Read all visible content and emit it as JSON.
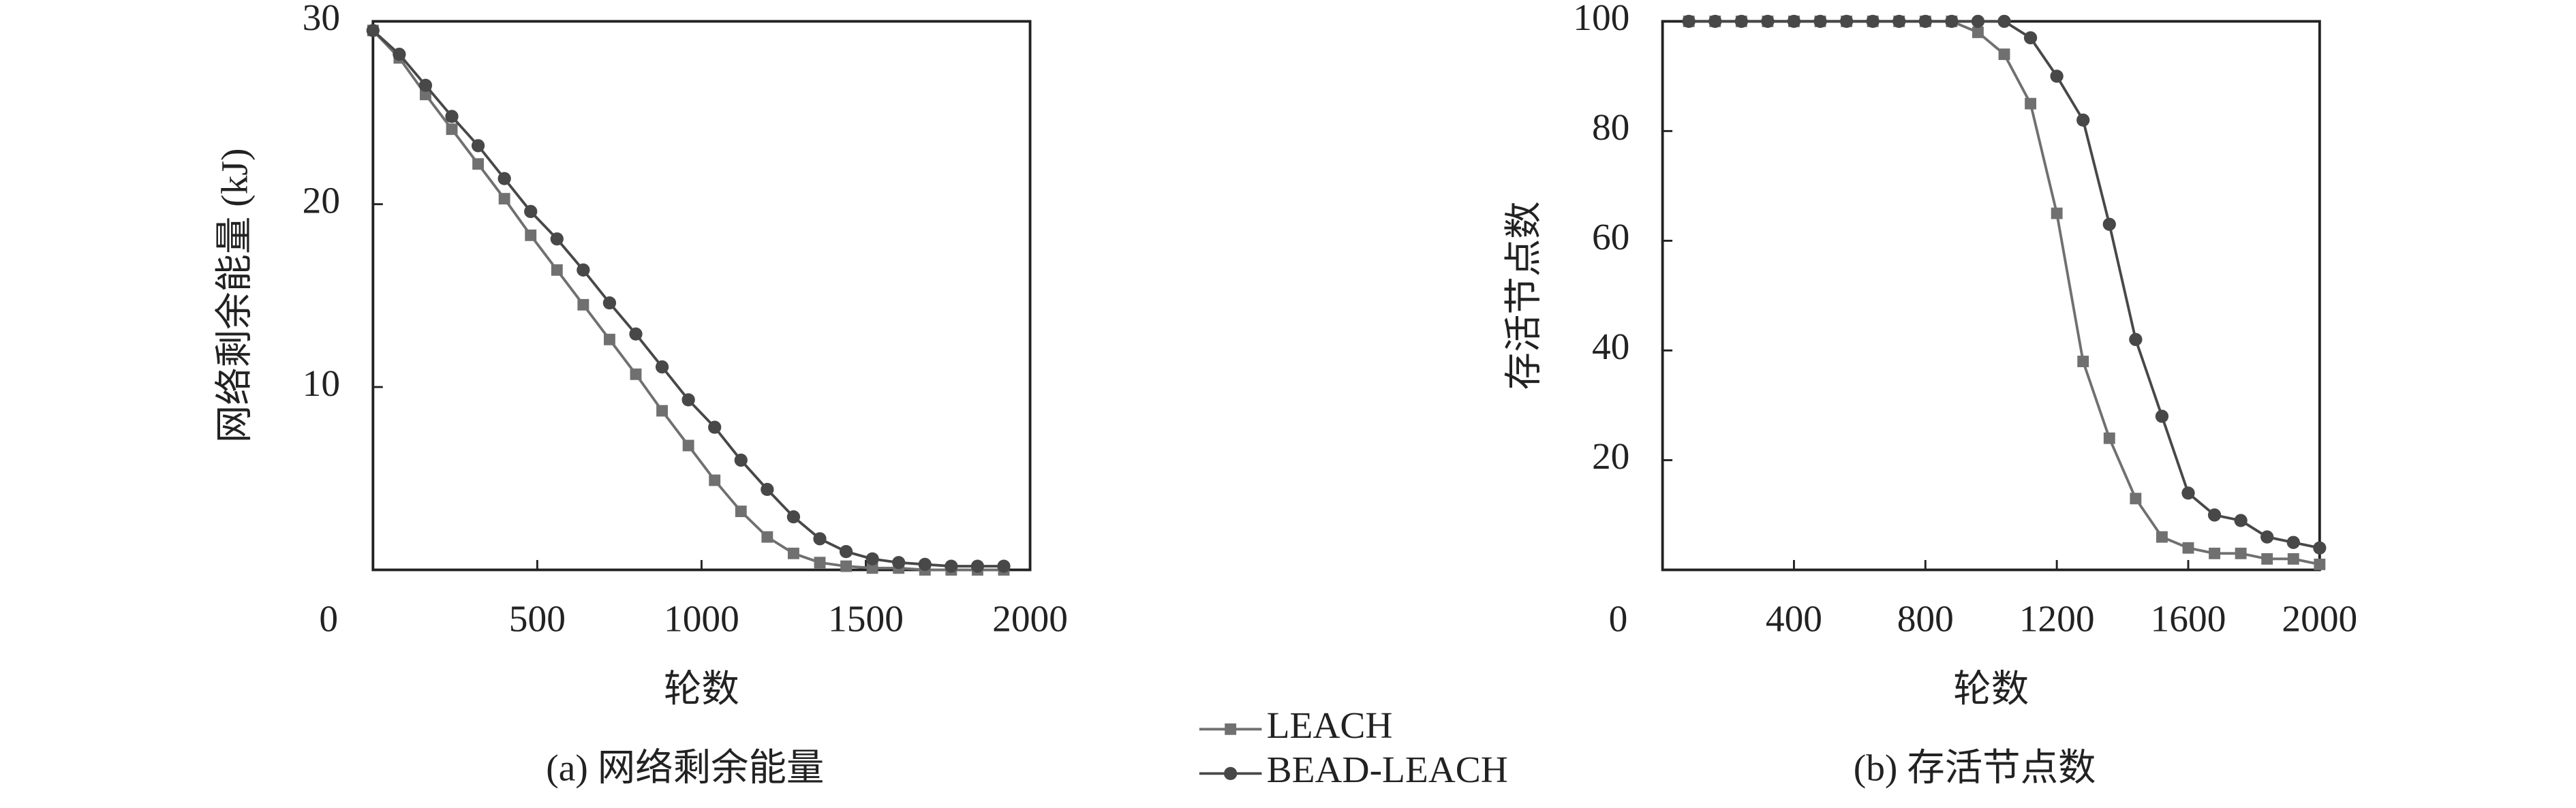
{
  "chart_data": [
    {
      "type": "line",
      "caption": "(a) 网络剩余能量",
      "xlabel": "轮数",
      "ylabel": "网络剩余能量 (kJ)",
      "x": [
        0,
        80,
        160,
        240,
        320,
        400,
        480,
        560,
        640,
        720,
        800,
        880,
        960,
        1040,
        1120,
        1200,
        1280,
        1360,
        1440,
        1520,
        1600,
        1680,
        1760,
        1840,
        1920
      ],
      "xlim": [
        0,
        2000
      ],
      "xticks": [
        0,
        500,
        1000,
        1500,
        2000
      ],
      "ylim": [
        0,
        30
      ],
      "yticks": [
        10,
        20,
        30
      ],
      "series": [
        {
          "name": "LEACH",
          "color": "#707070",
          "marker": "square",
          "values": [
            29.5,
            28,
            26,
            24.1,
            22.2,
            20.3,
            18.3,
            16.4,
            14.5,
            12.6,
            10.7,
            8.7,
            6.8,
            4.9,
            3.2,
            1.8,
            0.9,
            0.4,
            0.2,
            0.1,
            0.1,
            0,
            0,
            0,
            0
          ]
        },
        {
          "name": "BEAD-LEACH",
          "color": "#484848",
          "marker": "circle",
          "values": [
            29.5,
            28.2,
            26.5,
            24.8,
            23.2,
            21.4,
            19.6,
            18.1,
            16.4,
            14.6,
            12.9,
            11.1,
            9.3,
            7.8,
            6,
            4.4,
            2.9,
            1.7,
            1,
            0.6,
            0.4,
            0.3,
            0.2,
            0.2,
            0.2
          ]
        }
      ]
    },
    {
      "type": "line",
      "caption": "(b) 存活节点数",
      "xlabel": "轮数",
      "ylabel": "存活节点数",
      "x": [
        80,
        160,
        240,
        320,
        400,
        480,
        560,
        640,
        720,
        800,
        880,
        960,
        1040,
        1120,
        1200,
        1280,
        1360,
        1440,
        1520,
        1600,
        1680,
        1760,
        1840,
        1920,
        2000
      ],
      "xlim": [
        0,
        2000
      ],
      "xticks": [
        0,
        400,
        800,
        1200,
        1600,
        2000
      ],
      "ylim": [
        0,
        100
      ],
      "yticks": [
        20,
        40,
        60,
        80,
        100
      ],
      "series": [
        {
          "name": "LEACH",
          "color": "#707070",
          "marker": "square",
          "values": [
            100,
            100,
            100,
            100,
            100,
            100,
            100,
            100,
            100,
            100,
            100,
            98,
            94,
            85,
            65,
            38,
            24,
            13,
            6,
            4,
            3,
            3,
            2,
            2,
            1
          ]
        },
        {
          "name": "BEAD-LEACH",
          "color": "#484848",
          "marker": "circle",
          "values": [
            100,
            100,
            100,
            100,
            100,
            100,
            100,
            100,
            100,
            100,
            100,
            100,
            100,
            97,
            90,
            82,
            63,
            42,
            28,
            14,
            10,
            9,
            6,
            5,
            4
          ]
        }
      ]
    }
  ]
}
